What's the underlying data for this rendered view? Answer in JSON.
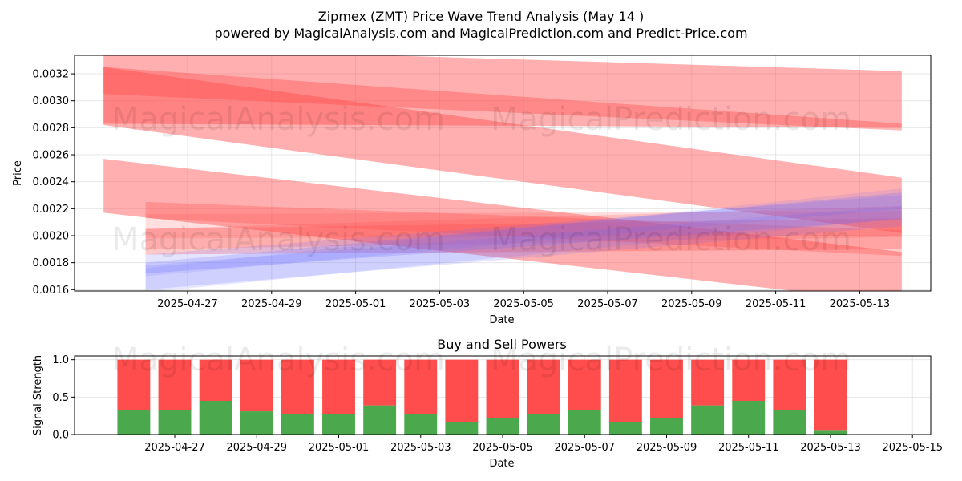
{
  "header": {
    "title": "Zipmex (ZMT) Price Wave Trend Analysis (May 14 )",
    "subtitle": "powered by MagicalAnalysis.com and MagicalPrediction.com and Predict-Price.com"
  },
  "watermarks": [
    "MagicalAnalysis.com",
    "MagicalPrediction.com"
  ],
  "chart_data": [
    {
      "type": "area",
      "title": "",
      "xlabel": "Date",
      "ylabel": "Price",
      "ylim": [
        0.00159,
        0.003337
      ],
      "x_range": [
        "2025-04-25",
        "2025-05-14"
      ],
      "x_ticks": [
        "2025-04-27",
        "2025-04-29",
        "2025-05-01",
        "2025-05-03",
        "2025-05-05",
        "2025-05-07",
        "2025-05-09",
        "2025-05-11",
        "2025-05-13"
      ],
      "y_ticks": [
        "0.0016",
        "0.0018",
        "0.0020",
        "0.0022",
        "0.0024",
        "0.0026",
        "0.0028",
        "0.0030",
        "0.0032"
      ],
      "grid": true,
      "colors": {
        "sell_band": "#ff4d4d",
        "buy_band": "#6b6bff"
      },
      "series": [
        {
          "color": "sell",
          "opacity": 0.45,
          "x": [
            "2025-04-25",
            "2025-05-14"
          ],
          "upper": [
            0.0034,
            0.00322
          ],
          "lower": [
            0.00283,
            0.0028
          ]
        },
        {
          "color": "sell",
          "opacity": 0.45,
          "x": [
            "2025-04-25",
            "2025-05-14"
          ],
          "upper": [
            0.00325,
            0.00243
          ],
          "lower": [
            0.00282,
            0.00202
          ]
        },
        {
          "color": "sell",
          "opacity": 0.45,
          "x": [
            "2025-04-25",
            "2025-05-14"
          ],
          "upper": [
            0.00257,
            0.00188
          ],
          "lower": [
            0.00217,
            0.0015
          ]
        },
        {
          "color": "sell",
          "opacity": 0.4,
          "x": [
            "2025-04-25",
            "2025-05-14"
          ],
          "upper": [
            0.00325,
            0.00283
          ],
          "lower": [
            0.00305,
            0.00278
          ]
        },
        {
          "color": "sell",
          "opacity": 0.3,
          "x": [
            "2025-04-26",
            "2025-05-14"
          ],
          "upper": [
            0.00225,
            0.00204
          ],
          "lower": [
            0.00213,
            0.00185
          ]
        },
        {
          "color": "sell",
          "opacity": 0.3,
          "x": [
            "2025-04-26",
            "2025-05-14"
          ],
          "upper": [
            0.00205,
            0.00213
          ],
          "lower": [
            0.00186,
            0.0019
          ]
        },
        {
          "color": "sell",
          "opacity": 0.22,
          "x": [
            "2025-04-26",
            "2025-05-14"
          ],
          "upper": [
            0.00205,
            0.00222
          ],
          "lower": [
            0.0019,
            0.00199
          ]
        },
        {
          "color": "sell",
          "opacity": 0.18,
          "x": [
            "2025-04-26",
            "2025-05-14"
          ],
          "upper": [
            0.00216,
            0.00218
          ],
          "lower": [
            0.00198,
            0.002
          ]
        },
        {
          "color": "buy",
          "opacity": 0.22,
          "x": [
            "2025-04-26",
            "2025-05-14"
          ],
          "upper": [
            0.0018,
            0.00232
          ],
          "lower": [
            0.00172,
            0.00212
          ]
        },
        {
          "color": "buy",
          "opacity": 0.18,
          "x": [
            "2025-04-26",
            "2025-05-14"
          ],
          "upper": [
            0.00186,
            0.0023
          ],
          "lower": [
            0.0016,
            0.00207
          ]
        },
        {
          "color": "buy",
          "opacity": 0.16,
          "x": [
            "2025-04-26",
            "2025-05-14"
          ],
          "upper": [
            0.00178,
            0.00222
          ],
          "lower": [
            0.00158,
            0.00213
          ]
        },
        {
          "color": "buy",
          "opacity": 0.14,
          "x": [
            "2025-04-26",
            "2025-05-14"
          ],
          "upper": [
            0.00176,
            0.00235
          ],
          "lower": [
            0.0017,
            0.0022
          ]
        }
      ]
    },
    {
      "type": "bar",
      "title": "Buy and Sell Powers",
      "xlabel": "Date",
      "ylabel": "Signal Strength",
      "ylim": [
        0,
        1.05
      ],
      "x_range": [
        "2025-04-25",
        "2025-05-15"
      ],
      "x_ticks": [
        "2025-04-27",
        "2025-04-29",
        "2025-05-01",
        "2025-05-03",
        "2025-05-05",
        "2025-05-07",
        "2025-05-09",
        "2025-05-11",
        "2025-05-13",
        "2025-05-15"
      ],
      "y_ticks": [
        "0.0",
        "0.5",
        "1.0"
      ],
      "grid": true,
      "colors": {
        "buy": "#4ca84c",
        "sell": "#ff4d4d"
      },
      "categories": [
        "2025-04-26",
        "2025-04-27",
        "2025-04-28",
        "2025-04-29",
        "2025-04-30",
        "2025-05-01",
        "2025-05-02",
        "2025-05-03",
        "2025-05-04",
        "2025-05-05",
        "2025-05-06",
        "2025-05-07",
        "2025-05-08",
        "2025-05-09",
        "2025-05-10",
        "2025-05-11",
        "2025-05-12",
        "2025-05-13"
      ],
      "series": [
        {
          "values": [
            0.33,
            0.33,
            0.45,
            0.31,
            0.27,
            0.27,
            0.39,
            0.27,
            0.17,
            0.22,
            0.27,
            0.33,
            0.17,
            0.22,
            0.39,
            0.45,
            0.33,
            0.05
          ]
        },
        {
          "values": [
            0.67,
            0.67,
            0.55,
            0.69,
            0.73,
            0.73,
            0.61,
            0.73,
            0.83,
            0.78,
            0.73,
            0.67,
            0.83,
            0.78,
            0.61,
            0.55,
            0.67,
            0.95
          ]
        }
      ]
    }
  ]
}
